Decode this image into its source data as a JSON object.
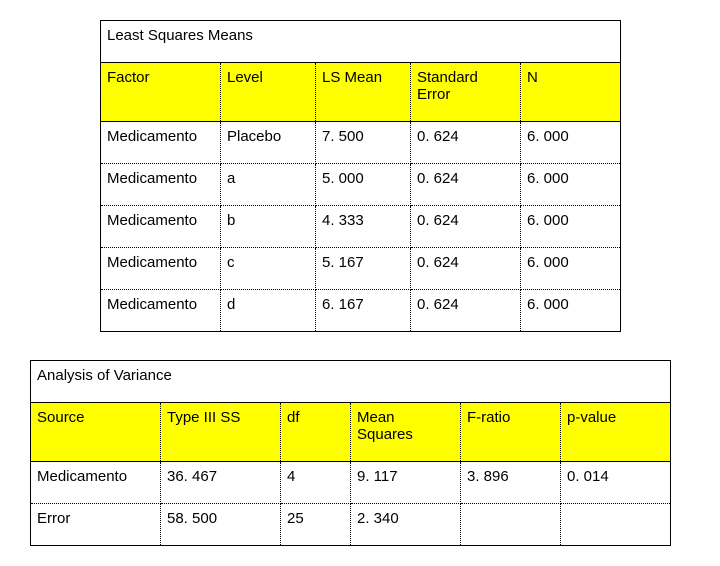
{
  "lsm": {
    "title": "Least Squares Means",
    "columns": [
      "Factor",
      "Level",
      "LS Mean",
      "Standard Error",
      "N"
    ],
    "rows": [
      [
        "Medicamento",
        "Placebo",
        "7. 500",
        "0. 624",
        "6. 000"
      ],
      [
        "Medicamento",
        "a",
        "5. 000",
        "0. 624",
        "6. 000"
      ],
      [
        "Medicamento",
        "b",
        "4. 333",
        "0. 624",
        "6. 000"
      ],
      [
        "Medicamento",
        "c",
        "5. 167",
        "0. 624",
        "6. 000"
      ],
      [
        "Medicamento",
        "d",
        "6. 167",
        "0. 624",
        "6. 000"
      ]
    ]
  },
  "aov": {
    "title": "Analysis of Variance",
    "columns": [
      "Source",
      "Type III SS",
      "df",
      "Mean Squares",
      "F-ratio",
      "p-value"
    ],
    "rows": [
      [
        "Medicamento",
        "36. 467",
        "4",
        "9. 117",
        "3. 896",
        "0. 014"
      ],
      [
        "Error",
        "58. 500",
        "25",
        "2. 340",
        "",
        ""
      ]
    ]
  },
  "style": {
    "header_bg": "#ffff00",
    "border_color": "#000000",
    "font_family": "Arial",
    "title_fontsize_pt": 12,
    "cell_fontsize_pt": 12
  }
}
